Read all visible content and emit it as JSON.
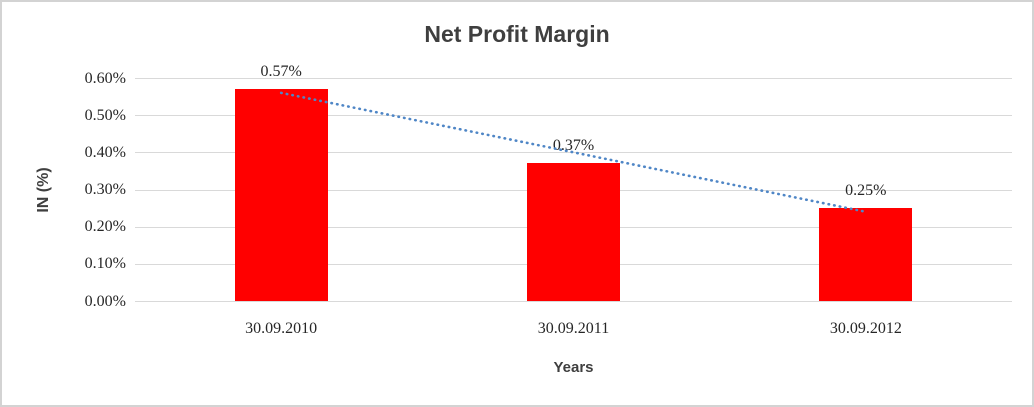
{
  "chart_data": {
    "type": "bar",
    "title": "Net Profit Margin",
    "xlabel": "Years",
    "ylabel": "IN (%)",
    "categories": [
      "30.09.2010",
      "30.09.2011",
      "30.09.2012"
    ],
    "values": [
      0.57,
      0.37,
      0.25
    ],
    "data_labels": [
      "0.57%",
      "0.37%",
      "0.25%"
    ],
    "ytick_labels": [
      "0.00%",
      "0.10%",
      "0.20%",
      "0.30%",
      "0.40%",
      "0.50%",
      "0.60%"
    ],
    "ylim": [
      0,
      0.6
    ],
    "grid": true,
    "legend_position": "none",
    "bar_color": "#ff0000",
    "gridline_color": "#d9d9d9",
    "text_color": "#262626",
    "title_color": "#3f3f3f",
    "trendline": {
      "style": "dotted",
      "color": "#4f86c6",
      "start_value": 0.56,
      "end_value": 0.24
    }
  }
}
